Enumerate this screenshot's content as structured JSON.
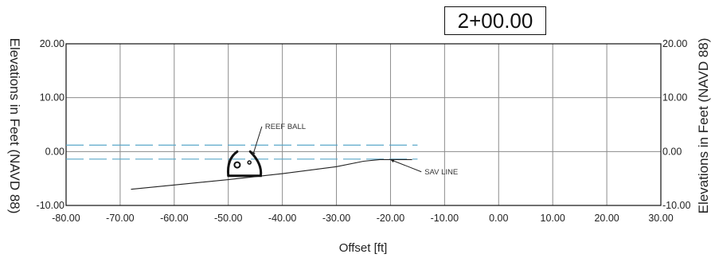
{
  "station_label": "2+00.00",
  "chart_data": {
    "type": "line",
    "xlabel": "Offset [ft]",
    "ylabel_left": "Elevations in Feet (NAVD 88)",
    "ylabel_right": "Elevations in Feet (NAVD 88)",
    "xlim": [
      -80,
      30
    ],
    "ylim": [
      -10,
      20
    ],
    "x_ticks": [
      -80,
      -70,
      -60,
      -50,
      -40,
      -30,
      -20,
      -10,
      0,
      10,
      20,
      30
    ],
    "x_tick_labels": [
      "-80.00",
      "-70.00",
      "-60.00",
      "-50.00",
      "-40.00",
      "-30.00",
      "-20.00",
      "-10.00",
      "0.00",
      "10.00",
      "20.00",
      "30.00"
    ],
    "y_ticks": [
      -10,
      0,
      10,
      20
    ],
    "y_tick_labels": [
      "-10.00",
      "0.00",
      "10.00",
      "20.00"
    ],
    "grid": true,
    "series": [
      {
        "kind": "ground",
        "x": [
          -68,
          -60,
          -50,
          -40,
          -30,
          -25,
          -22,
          -16
        ],
        "y": [
          -7.0,
          -6.2,
          -5.2,
          -4.1,
          -2.8,
          -1.8,
          -1.5,
          -1.5
        ]
      },
      {
        "kind": "water-level-upper",
        "x": [
          -80,
          -15
        ],
        "y": [
          1.2,
          1.2
        ]
      },
      {
        "kind": "water-level-lower",
        "x": [
          -80,
          -15
        ],
        "y": [
          -1.4,
          -1.4
        ]
      }
    ],
    "reef_ball": {
      "x_center": -47,
      "y_base": -4.5,
      "width": 6,
      "height": 4.5
    },
    "annotations": [
      {
        "text": "REEF BALL",
        "x": -43.5,
        "y": 4.2,
        "target_x": -45.5,
        "target_y": -0.8
      },
      {
        "text": "SAV LINE",
        "x": -14,
        "y": -4.2,
        "target_x": -20,
        "target_y": -1.5
      }
    ],
    "colors": {
      "ground": "#222222",
      "water": "#5aa7c9",
      "grid": "#8c8c8c",
      "axis": "#111111"
    }
  }
}
